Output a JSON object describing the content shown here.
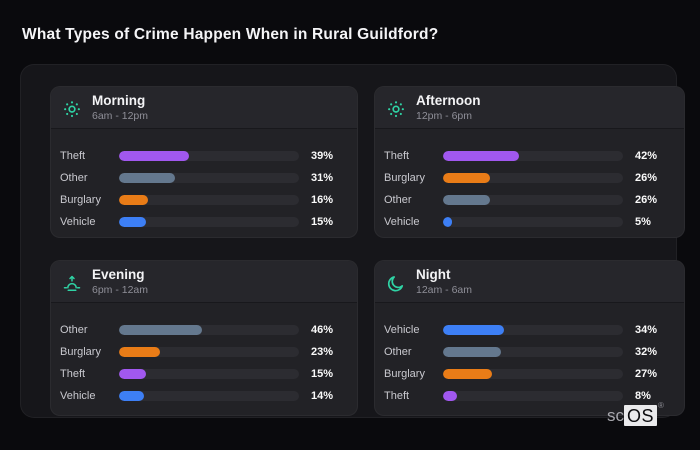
{
  "title": "What Types of Crime Happen When in Rural Guildford?",
  "brand": {
    "prefix": "sc",
    "os": "OS",
    "registered_mark": "®"
  },
  "colors": {
    "background": "#0a0a0d",
    "panel": "#16161a",
    "card": "#222226",
    "card_header": "#26262b",
    "bar_track": "#2c2c31",
    "accent_teal": "#2fd3a5",
    "theft": "#a158ef",
    "other": "#64788e",
    "burglary": "#e97c17",
    "vehicle": "#3d7ff5"
  },
  "cards": [
    {
      "icon": "sun",
      "name": "Morning",
      "time_range": "6am - 12pm",
      "rows": [
        {
          "label": "Theft",
          "value": 39,
          "display": "39%",
          "color": "#a158ef"
        },
        {
          "label": "Other",
          "value": 31,
          "display": "31%",
          "color": "#64788e"
        },
        {
          "label": "Burglary",
          "value": 16,
          "display": "16%",
          "color": "#e97c17"
        },
        {
          "label": "Vehicle",
          "value": 15,
          "display": "15%",
          "color": "#3d7ff5"
        }
      ]
    },
    {
      "icon": "sun",
      "name": "Afternoon",
      "time_range": "12pm - 6pm",
      "rows": [
        {
          "label": "Theft",
          "value": 42,
          "display": "42%",
          "color": "#a158ef"
        },
        {
          "label": "Burglary",
          "value": 26,
          "display": "26%",
          "color": "#e97c17"
        },
        {
          "label": "Other",
          "value": 26,
          "display": "26%",
          "color": "#64788e"
        },
        {
          "label": "Vehicle",
          "value": 5,
          "display": "5%",
          "color": "#3d7ff5"
        }
      ]
    },
    {
      "icon": "sunset",
      "name": "Evening",
      "time_range": "6pm - 12am",
      "rows": [
        {
          "label": "Other",
          "value": 46,
          "display": "46%",
          "color": "#64788e"
        },
        {
          "label": "Burglary",
          "value": 23,
          "display": "23%",
          "color": "#e97c17"
        },
        {
          "label": "Theft",
          "value": 15,
          "display": "15%",
          "color": "#a158ef"
        },
        {
          "label": "Vehicle",
          "value": 14,
          "display": "14%",
          "color": "#3d7ff5"
        }
      ]
    },
    {
      "icon": "moon",
      "name": "Night",
      "time_range": "12am - 6am",
      "rows": [
        {
          "label": "Vehicle",
          "value": 34,
          "display": "34%",
          "color": "#3d7ff5"
        },
        {
          "label": "Other",
          "value": 32,
          "display": "32%",
          "color": "#64788e"
        },
        {
          "label": "Burglary",
          "value": 27,
          "display": "27%",
          "color": "#e97c17"
        },
        {
          "label": "Theft",
          "value": 8,
          "display": "8%",
          "color": "#a158ef"
        }
      ]
    }
  ],
  "chart_data": [
    {
      "type": "bar",
      "orientation": "horizontal",
      "title": "Morning",
      "subtitle": "6am - 12pm",
      "categories": [
        "Theft",
        "Other",
        "Burglary",
        "Vehicle"
      ],
      "values": [
        39,
        31,
        16,
        15
      ],
      "unit": "%",
      "xlim": [
        0,
        100
      ],
      "grid": false,
      "legend": false
    },
    {
      "type": "bar",
      "orientation": "horizontal",
      "title": "Afternoon",
      "subtitle": "12pm - 6pm",
      "categories": [
        "Theft",
        "Burglary",
        "Other",
        "Vehicle"
      ],
      "values": [
        42,
        26,
        26,
        5
      ],
      "unit": "%",
      "xlim": [
        0,
        100
      ],
      "grid": false,
      "legend": false
    },
    {
      "type": "bar",
      "orientation": "horizontal",
      "title": "Evening",
      "subtitle": "6pm - 12am",
      "categories": [
        "Other",
        "Burglary",
        "Theft",
        "Vehicle"
      ],
      "values": [
        46,
        23,
        15,
        14
      ],
      "unit": "%",
      "xlim": [
        0,
        100
      ],
      "grid": false,
      "legend": false
    },
    {
      "type": "bar",
      "orientation": "horizontal",
      "title": "Night",
      "subtitle": "12am - 6am",
      "categories": [
        "Vehicle",
        "Other",
        "Burglary",
        "Theft"
      ],
      "values": [
        34,
        32,
        27,
        8
      ],
      "unit": "%",
      "xlim": [
        0,
        100
      ],
      "grid": false,
      "legend": false
    }
  ]
}
